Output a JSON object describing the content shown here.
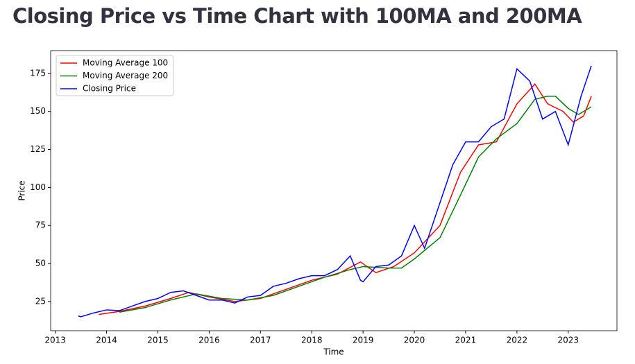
{
  "chart_data": {
    "type": "line",
    "title": "Closing Price vs Time Chart with 100MA and 200MA",
    "x_label": "Time",
    "y_label": "Price",
    "xlim": [
      2012.91,
      2023.95
    ],
    "xticks": [
      2013,
      2014,
      2015,
      2016,
      2017,
      2018,
      2019,
      2020,
      2021,
      2022,
      2023
    ],
    "ylim": [
      5.8,
      190
    ],
    "yticks": [
      25,
      50,
      75,
      100,
      125,
      150,
      175
    ],
    "legend": "upper left",
    "series": [
      {
        "name": "Moving Average 100",
        "color": "#ff0000",
        "x": [
          2013.85,
          2014.25,
          2014.75,
          2015.25,
          2015.6,
          2016.0,
          2016.5,
          2017.0,
          2017.5,
          2018.0,
          2018.5,
          2018.95,
          2019.25,
          2019.6,
          2020.0,
          2020.5,
          2020.9,
          2021.25,
          2021.6,
          2022.0,
          2022.35,
          2022.6,
          2022.9,
          2023.1,
          2023.3,
          2023.45
        ],
        "values": [
          16.5,
          18.5,
          22,
          27,
          31,
          28,
          25,
          27,
          33,
          39,
          43,
          51,
          44,
          48,
          57,
          75,
          110,
          128,
          130,
          155,
          168,
          155,
          150,
          143,
          147,
          160
        ]
      },
      {
        "name": "Moving Average 200",
        "color": "#008000",
        "x": [
          2014.25,
          2014.75,
          2015.25,
          2015.75,
          2016.25,
          2016.75,
          2017.25,
          2017.75,
          2018.25,
          2018.75,
          2019.0,
          2019.5,
          2019.75,
          2020.0,
          2020.5,
          2020.9,
          2021.25,
          2021.6,
          2022.0,
          2022.35,
          2022.6,
          2022.75,
          2023.0,
          2023.2,
          2023.45
        ],
        "values": [
          18,
          21,
          26,
          30,
          27,
          26,
          29,
          35,
          41,
          46,
          48,
          47,
          47,
          53,
          67,
          95,
          120,
          132,
          142,
          158,
          160,
          160,
          152,
          148,
          153
        ]
      },
      {
        "name": "Closing Price",
        "color": "#0000ff",
        "x": [
          2013.45,
          2013.5,
          2013.75,
          2014.0,
          2014.25,
          2014.5,
          2014.75,
          2015.0,
          2015.25,
          2015.5,
          2015.75,
          2016.0,
          2016.25,
          2016.5,
          2016.75,
          2017.0,
          2017.25,
          2017.5,
          2017.75,
          2018.0,
          2018.25,
          2018.5,
          2018.75,
          2018.95,
          2019.0,
          2019.25,
          2019.5,
          2019.75,
          2020.0,
          2020.2,
          2020.5,
          2020.75,
          2021.0,
          2021.25,
          2021.5,
          2021.75,
          2022.0,
          2022.25,
          2022.5,
          2022.75,
          2023.0,
          2023.25,
          2023.45
        ],
        "values": [
          15.5,
          15,
          17.5,
          19.5,
          19,
          22,
          25,
          27,
          31,
          32,
          29,
          26,
          26,
          24,
          28,
          29,
          35,
          37,
          40,
          42,
          42,
          46,
          55,
          39,
          38,
          48,
          49,
          55,
          75,
          60,
          90,
          115,
          130,
          130,
          140,
          145,
          178,
          170,
          145,
          150,
          128,
          160,
          180
        ]
      }
    ]
  }
}
